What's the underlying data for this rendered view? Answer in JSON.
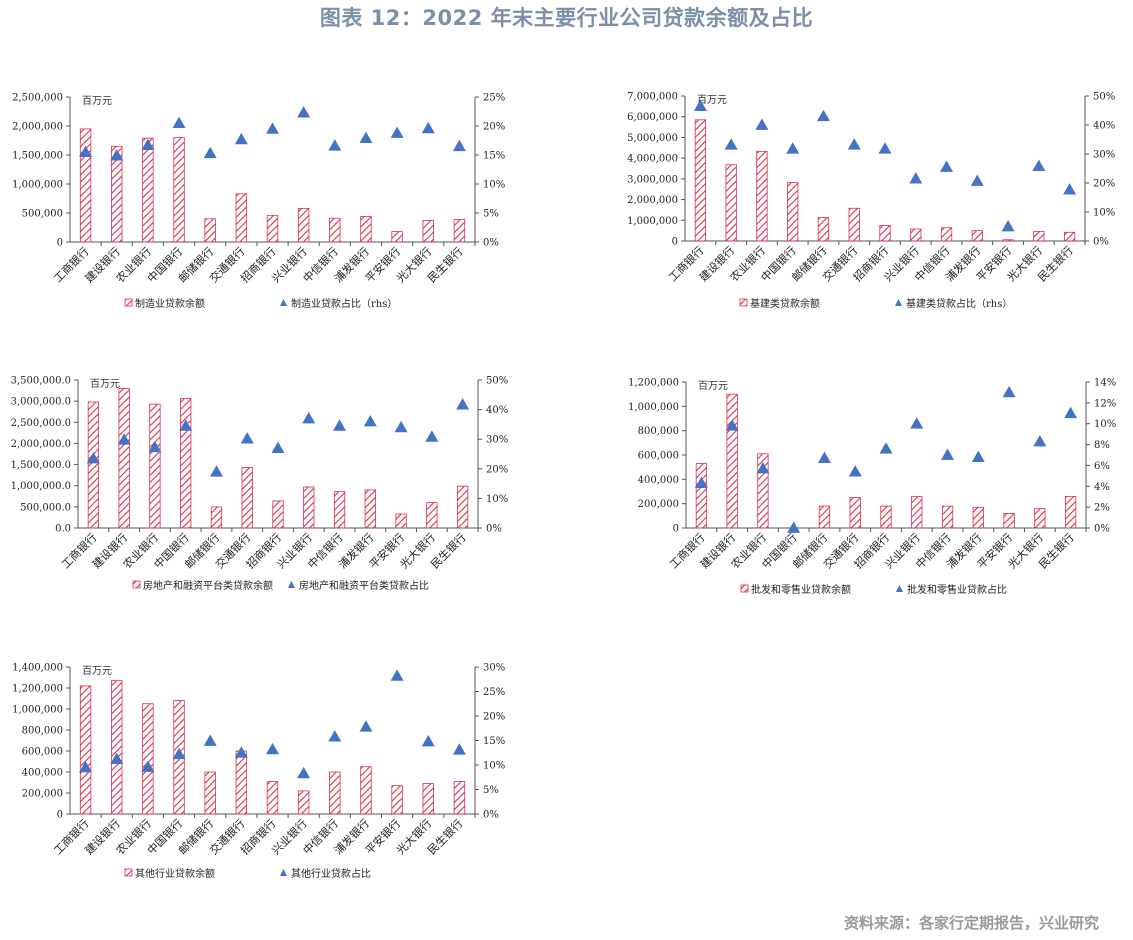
{
  "title": "图表 12：2022 年末主要行业公司贷款余额及占比",
  "source": "资料来源：各家行定期报告，兴业研究",
  "colors": {
    "bar_stroke": "#d9304a",
    "bar_hatch": "#d9304a",
    "marker": "#4472c4",
    "title": "#7a90a9"
  },
  "chart_data": [
    {
      "type": "bar",
      "unit_label": "百万元",
      "categories": [
        "工商银行",
        "建设银行",
        "农业银行",
        "中国银行",
        "邮储银行",
        "交通银行",
        "招商银行",
        "兴业银行",
        "中信银行",
        "浦发银行",
        "平安银行",
        "光大银行",
        "民生银行"
      ],
      "series": [
        {
          "name": "制造业贷款余额",
          "axis": "left",
          "kind": "bar",
          "values": [
            1950000,
            1650000,
            1790000,
            1800000,
            400000,
            830000,
            460000,
            580000,
            410000,
            440000,
            180000,
            370000,
            390000
          ]
        },
        {
          "name": "制造业贷款占比（rhs）",
          "axis": "right",
          "kind": "marker",
          "values": [
            15.5,
            14.9,
            16.7,
            20.5,
            15.3,
            17.7,
            19.5,
            22.3,
            16.6,
            17.9,
            18.8,
            19.6,
            16.5
          ]
        }
      ],
      "ylim": [
        0,
        2500000
      ],
      "yticks": [
        0,
        500000,
        1000000,
        1500000,
        2000000,
        2500000
      ],
      "ytick_labels": [
        "0",
        "500,000",
        "1,000,000",
        "1,500,000",
        "2,000,000",
        "2,500,000"
      ],
      "y2lim": [
        0,
        25
      ],
      "y2ticks": [
        0,
        5,
        10,
        15,
        20,
        25
      ],
      "y2tick_labels": [
        "0%",
        "5%",
        "10%",
        "15%",
        "20%",
        "25%"
      ],
      "legend_labels": [
        "制造业贷款余额",
        "制造业贷款占比（rhs）"
      ]
    },
    {
      "type": "bar",
      "unit_label": "百万元",
      "categories": [
        "工商银行",
        "建设银行",
        "农业银行",
        "中国银行",
        "邮储银行",
        "交通银行",
        "招商银行",
        "兴业银行",
        "中信银行",
        "浦发银行",
        "平安银行",
        "光大银行",
        "民生银行"
      ],
      "series": [
        {
          "name": "基建类贷款余额",
          "axis": "left",
          "kind": "bar",
          "values": [
            5850000,
            3680000,
            4330000,
            2820000,
            1130000,
            1580000,
            750000,
            580000,
            640000,
            500000,
            60000,
            460000,
            420000
          ]
        },
        {
          "name": "基建类贷款占比（rhs）",
          "axis": "right",
          "kind": "marker",
          "values": [
            46.5,
            33.2,
            40,
            31.8,
            43,
            33.2,
            31.8,
            21.5,
            25.5,
            20.7,
            5,
            25.8,
            17.7
          ]
        }
      ],
      "ylim": [
        0,
        7000000
      ],
      "yticks": [
        0,
        1000000,
        2000000,
        3000000,
        4000000,
        5000000,
        6000000,
        7000000
      ],
      "ytick_labels": [
        "0",
        "1,000,000",
        "2,000,000",
        "3,000,000",
        "4,000,000",
        "5,000,000",
        "6,000,000",
        "7,000,000"
      ],
      "y2lim": [
        0,
        50
      ],
      "y2ticks": [
        0,
        10,
        20,
        30,
        40,
        50
      ],
      "y2tick_labels": [
        "0%",
        "10%",
        "20%",
        "30%",
        "40%",
        "50%"
      ],
      "legend_labels": [
        "基建类贷款余额",
        "基建类贷款占比（rhs）"
      ]
    },
    {
      "type": "bar",
      "unit_label": "百万元",
      "categories": [
        "工商银行",
        "建设银行",
        "农业银行",
        "中国银行",
        "邮储银行",
        "交通银行",
        "招商银行",
        "兴业银行",
        "中信银行",
        "浦发银行",
        "平安银行",
        "光大银行",
        "民生银行"
      ],
      "series": [
        {
          "name": "房地产和融资平台类贷款余额",
          "axis": "left",
          "kind": "bar",
          "values": [
            2980000,
            3300000,
            2930000,
            3060000,
            500000,
            1430000,
            640000,
            970000,
            860000,
            900000,
            330000,
            600000,
            990000
          ]
        },
        {
          "name": "房地产和融资平台类贷款占比",
          "axis": "right",
          "kind": "marker",
          "values": [
            23.5,
            29.8,
            27.3,
            34.5,
            19,
            30.2,
            27,
            37,
            34.5,
            36,
            34,
            30.8,
            41.7
          ]
        }
      ],
      "ylim": [
        0,
        3500000
      ],
      "yticks": [
        0,
        500000,
        1000000,
        1500000,
        2000000,
        2500000,
        3000000,
        3500000
      ],
      "ytick_labels": [
        "0.0",
        "500,000.0",
        "1,000,000.0",
        "1,500,000.0",
        "2,000,000.0",
        "2,500,000.0",
        "3,000,000.0",
        "3,500,000.0"
      ],
      "y2lim": [
        0,
        50
      ],
      "y2ticks": [
        0,
        10,
        20,
        30,
        40,
        50
      ],
      "y2tick_labels": [
        "0%",
        "10%",
        "20%",
        "30%",
        "40%",
        "50%"
      ],
      "legend_labels": [
        "房地产和融资平台类贷款余额",
        "房地产和融资平台类贷款占比"
      ]
    },
    {
      "type": "bar",
      "unit_label": "百万元",
      "categories": [
        "工商银行",
        "建设银行",
        "农业银行",
        "中国银行",
        "邮储银行",
        "交通银行",
        "招商银行",
        "兴业银行",
        "中信银行",
        "浦发银行",
        "平安银行",
        "光大银行",
        "民生银行"
      ],
      "series": [
        {
          "name": "批发和零售业贷款余额",
          "axis": "left",
          "kind": "bar",
          "values": [
            530000,
            1100000,
            610000,
            0,
            180000,
            250000,
            180000,
            260000,
            180000,
            170000,
            120000,
            160000,
            260000
          ]
        },
        {
          "name": "批发和零售业贷款占比",
          "axis": "right",
          "kind": "marker",
          "values": [
            4.3,
            9.8,
            5.7,
            0,
            6.7,
            5.4,
            7.6,
            10,
            7,
            6.8,
            13,
            8.3,
            11
          ]
        }
      ],
      "ylim": [
        0,
        1200000
      ],
      "yticks": [
        0,
        200000,
        400000,
        600000,
        800000,
        1000000,
        1200000
      ],
      "ytick_labels": [
        "0",
        "200,000",
        "400,000",
        "600,000",
        "800,000",
        "1,000,000",
        "1,200,000"
      ],
      "y2lim": [
        0,
        14
      ],
      "y2ticks": [
        0,
        2,
        4,
        6,
        8,
        10,
        12,
        14
      ],
      "y2tick_labels": [
        "0%",
        "2%",
        "4%",
        "6%",
        "8%",
        "10%",
        "12%",
        "14%"
      ],
      "legend_labels": [
        "批发和零售业贷款余额",
        "批发和零售业贷款占比"
      ]
    },
    {
      "type": "bar",
      "unit_label": "百万元",
      "categories": [
        "工商银行",
        "建设银行",
        "农业银行",
        "中国银行",
        "邮储银行",
        "交通银行",
        "招商银行",
        "兴业银行",
        "中信银行",
        "浦发银行",
        "平安银行",
        "光大银行",
        "民生银行"
      ],
      "series": [
        {
          "name": "其他行业贷款余额",
          "axis": "left",
          "kind": "bar",
          "values": [
            1220000,
            1270000,
            1050000,
            1080000,
            400000,
            600000,
            310000,
            220000,
            400000,
            450000,
            270000,
            290000,
            310000
          ]
        },
        {
          "name": "其他行业贷款占比",
          "axis": "right",
          "kind": "marker",
          "values": [
            9.5,
            11.2,
            9.6,
            12.2,
            14.9,
            12.5,
            13.2,
            8.3,
            15.8,
            17.8,
            28.2,
            14.8,
            13.1
          ]
        }
      ],
      "ylim": [
        0,
        1400000
      ],
      "yticks": [
        0,
        200000,
        400000,
        600000,
        800000,
        1000000,
        1200000,
        1400000
      ],
      "ytick_labels": [
        "0",
        "200,000",
        "400,000",
        "600,000",
        "800,000",
        "1,000,000",
        "1,200,000",
        "1,400,000"
      ],
      "y2lim": [
        0,
        30
      ],
      "y2ticks": [
        0,
        5,
        10,
        15,
        20,
        25,
        30
      ],
      "y2tick_labels": [
        "0%",
        "5%",
        "10%",
        "15%",
        "20%",
        "25%",
        "30%"
      ],
      "legend_labels": [
        "其他行业贷款余额",
        "其他行业贷款占比"
      ]
    }
  ]
}
